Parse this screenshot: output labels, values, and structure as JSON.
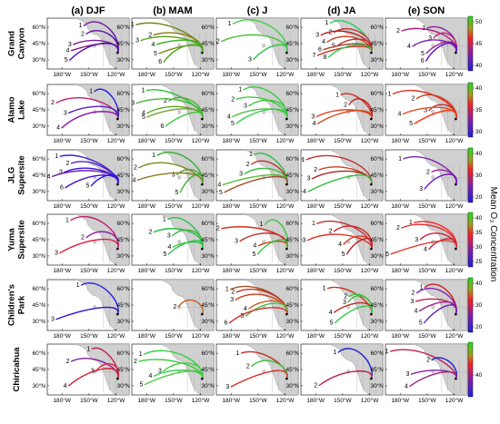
{
  "chart_data": {
    "type": "map-trajectories",
    "column_titles": [
      "(a) DJF",
      "(b) MAM",
      "(c) J",
      "(d) JA",
      "(e) SON"
    ],
    "row_labels": [
      [
        "Grand",
        "Canyon"
      ],
      [
        "Alamo",
        "Lake"
      ],
      [
        "JLG",
        "Supersite"
      ],
      [
        "Yuma",
        "Supersite"
      ],
      [
        "Children's",
        "Park"
      ],
      [
        "Chiricahua"
      ]
    ],
    "x_ticks": [
      "180°W",
      "150°W",
      "120°W"
    ],
    "y_ticks": [
      "60°N",
      "45°N",
      "30°N"
    ],
    "colorbar_label": "Mean O₃ Concentration",
    "colorbars": [
      {
        "ticks": [
          50,
          45,
          40
        ]
      },
      {
        "ticks": [
          40,
          35,
          30
        ]
      },
      {
        "ticks": [
          40,
          30,
          20
        ]
      },
      {
        "ticks": [
          40,
          35,
          30,
          25
        ]
      },
      {
        "ticks": [
          40,
          30,
          20
        ]
      },
      {
        "ticks": [
          40
        ]
      }
    ],
    "clusters": [
      [
        [
          {
            "label": "1",
            "color": "#6a1aa0"
          },
          {
            "label": "2",
            "color": "#5a10a8"
          },
          {
            "label": "3",
            "color": "#7a1a90"
          },
          {
            "label": "4",
            "color": "#8a1a80"
          },
          {
            "label": "5",
            "color": "#4b0bb0"
          }
        ],
        [
          {
            "label": "1",
            "color": "#6a8a1a"
          },
          {
            "label": "2",
            "color": "#8a7a10"
          },
          {
            "label": "3",
            "color": "#5aa01a"
          },
          {
            "label": "4",
            "color": "#3ab020"
          },
          {
            "label": "5",
            "color": "#708a15"
          },
          {
            "label": "6",
            "color": "#4aa81a"
          }
        ],
        [
          {
            "label": "1",
            "color": "#3ad040"
          },
          {
            "label": "2",
            "color": "#4ac030"
          },
          {
            "label": "3",
            "color": "#30c84a"
          }
        ],
        [
          {
            "label": "1",
            "color": "#20d060"
          },
          {
            "label": "2",
            "color": "#c83030"
          },
          {
            "label": "3",
            "color": "#b02020"
          },
          {
            "label": "4",
            "color": "#d04020"
          },
          {
            "label": "5",
            "color": "#c03030"
          },
          {
            "label": "6",
            "color": "#a04030"
          },
          {
            "label": "7",
            "color": "#d03020"
          },
          {
            "label": "8",
            "color": "#30d050"
          }
        ],
        [
          {
            "label": "1",
            "color": "#9020a0"
          },
          {
            "label": "2",
            "color": "#b01a80"
          },
          {
            "label": "3",
            "color": "#c02070"
          },
          {
            "label": "4",
            "color": "#7a20b0"
          },
          {
            "label": "5",
            "color": "#a02090"
          },
          {
            "label": "6",
            "color": "#5a10c0"
          }
        ]
      ],
      [
        [
          {
            "label": "1",
            "color": "#2020e0"
          },
          {
            "label": "2",
            "color": "#c02070"
          },
          {
            "label": "3",
            "color": "#5a20c0"
          },
          {
            "label": "4",
            "color": "#8a10b0"
          }
        ],
        [
          {
            "label": "1",
            "color": "#30c040"
          },
          {
            "label": "2",
            "color": "#50b030"
          },
          {
            "label": "3",
            "color": "#40b838"
          },
          {
            "label": "4",
            "color": "#60a830"
          },
          {
            "label": "5",
            "color": "#70a030"
          },
          {
            "label": "6",
            "color": "#38c838"
          }
        ],
        [
          {
            "label": "1",
            "color": "#30d040"
          },
          {
            "label": "2",
            "color": "#40c840"
          },
          {
            "label": "3",
            "color": "#38c838"
          },
          {
            "label": "4",
            "color": "#50c040"
          },
          {
            "label": "5",
            "color": "#30d050"
          }
        ],
        [
          {
            "label": "1",
            "color": "#d03020"
          },
          {
            "label": "2",
            "color": "#c02020"
          },
          {
            "label": "3",
            "color": "#e04020"
          },
          {
            "label": "4",
            "color": "#d05020"
          }
        ],
        [
          {
            "label": "1",
            "color": "#e03020"
          },
          {
            "label": "2",
            "color": "#d04020"
          },
          {
            "label": "3",
            "color": "#c03030"
          },
          {
            "label": "4",
            "color": "#e05020"
          },
          {
            "label": "5",
            "color": "#ff3010"
          }
        ]
      ],
      [
        [
          {
            "label": "1",
            "color": "#4020d0"
          },
          {
            "label": "2",
            "color": "#5a20c0"
          },
          {
            "label": "3",
            "color": "#3010e0"
          },
          {
            "label": "4",
            "color": "#6a20b0"
          },
          {
            "label": "5",
            "color": "#2010f0"
          },
          {
            "label": "6",
            "color": "#4010d0"
          }
        ],
        [
          {
            "label": "1",
            "color": "#30b030"
          },
          {
            "label": "2",
            "color": "#7a8a20"
          },
          {
            "label": "3",
            "color": "#50a030"
          },
          {
            "label": "4",
            "color": "#8a7a20"
          },
          {
            "label": "5",
            "color": "#40b030"
          }
        ],
        [
          {
            "label": "1",
            "color": "#30c040"
          },
          {
            "label": "2",
            "color": "#c03030"
          },
          {
            "label": "3",
            "color": "#40b840"
          },
          {
            "label": "4",
            "color": "#50c030"
          },
          {
            "label": "5",
            "color": "#a05030"
          }
        ],
        [
          {
            "label": "1",
            "color": "#c03030"
          },
          {
            "label": "2",
            "color": "#d04020"
          },
          {
            "label": "3",
            "color": "#b02020"
          },
          {
            "label": "4",
            "color": "#30c040"
          }
        ],
        [
          {
            "label": "1",
            "color": "#8020b0"
          },
          {
            "label": "2",
            "color": "#9a20a0"
          },
          {
            "label": "3",
            "color": "#7010c0"
          }
        ]
      ],
      [
        [
          {
            "label": "1",
            "color": "#c02070"
          },
          {
            "label": "2",
            "color": "#9020a0"
          },
          {
            "label": "3",
            "color": "#e02040"
          }
        ],
        [
          {
            "label": "1",
            "color": "#30c050"
          },
          {
            "label": "2",
            "color": "#20c040"
          },
          {
            "label": "3",
            "color": "#40b840"
          },
          {
            "label": "4",
            "color": "#30c848"
          },
          {
            "label": "5",
            "color": "#28c040"
          }
        ],
        [
          {
            "label": "1",
            "color": "#40c040"
          },
          {
            "label": "2",
            "color": "#d03020"
          },
          {
            "label": "3",
            "color": "#c03030"
          },
          {
            "label": "4",
            "color": "#e04020"
          },
          {
            "label": "5",
            "color": "#30c840"
          }
        ],
        [
          {
            "label": "1",
            "color": "#c03030"
          },
          {
            "label": "2",
            "color": "#d02020"
          },
          {
            "label": "3",
            "color": "#e03020"
          },
          {
            "label": "4",
            "color": "#d04030"
          },
          {
            "label": "5",
            "color": "#c02020"
          }
        ],
        [
          {
            "label": "1",
            "color": "#ff2020"
          },
          {
            "label": "2",
            "color": "#e03030"
          },
          {
            "label": "3",
            "color": "#d02030"
          },
          {
            "label": "4",
            "color": "#c02040"
          },
          {
            "label": "5",
            "color": "#e04030"
          }
        ]
      ],
      [
        [
          {
            "label": "1",
            "color": "#2020e0"
          },
          {
            "label": "3",
            "color": "#3010d0"
          }
        ],
        [
          {
            "label": "2",
            "color": "#c06020"
          }
        ],
        [
          {
            "label": "1",
            "color": "#a05020"
          },
          {
            "label": "2",
            "color": "#c03020"
          },
          {
            "label": "3",
            "color": "#d04020"
          },
          {
            "label": "4",
            "color": "#c06020"
          },
          {
            "label": "5",
            "color": "#40c040"
          },
          {
            "label": "6",
            "color": "#d03030"
          }
        ],
        [
          {
            "label": "1",
            "color": "#d03020"
          },
          {
            "label": "2",
            "color": "#30d040"
          },
          {
            "label": "3",
            "color": "#40c040"
          },
          {
            "label": "4",
            "color": "#c03030"
          },
          {
            "label": "5",
            "color": "#30d050"
          }
        ],
        [
          {
            "label": "1",
            "color": "#d02020"
          },
          {
            "label": "2",
            "color": "#8020b0"
          },
          {
            "label": "3",
            "color": "#c02050"
          },
          {
            "label": "4",
            "color": "#a02090"
          },
          {
            "label": "5",
            "color": "#6020c0"
          }
        ]
      ],
      [
        [
          {
            "label": "1",
            "color": "#c02050"
          },
          {
            "label": "2",
            "color": "#8020a0"
          },
          {
            "label": "3",
            "color": "#e02040"
          },
          {
            "label": "4",
            "color": "#d02030"
          }
        ],
        [
          {
            "label": "1",
            "color": "#30d040"
          },
          {
            "label": "2",
            "color": "#40c840"
          },
          {
            "label": "3",
            "color": "#40d040"
          },
          {
            "label": "4",
            "color": "#30d050"
          },
          {
            "label": "5",
            "color": "#50c840"
          }
        ],
        [
          {
            "label": "1",
            "color": "#c03020"
          },
          {
            "label": "2",
            "color": "#40c040"
          },
          {
            "label": "3",
            "color": "#d03030"
          }
        ],
        [
          {
            "label": "1",
            "color": "#2020d0"
          },
          {
            "label": "2",
            "color": "#c02050"
          }
        ],
        [
          {
            "label": "1",
            "color": "#c02050"
          },
          {
            "label": "2",
            "color": "#2020d0"
          },
          {
            "label": "3",
            "color": "#8020a0"
          },
          {
            "label": "4",
            "color": "#a02080"
          }
        ]
      ]
    ],
    "colormap": [
      "#2020e0",
      "#8020b0",
      "#e02040",
      "#ff3010",
      "#40c040",
      "#20e020"
    ]
  }
}
